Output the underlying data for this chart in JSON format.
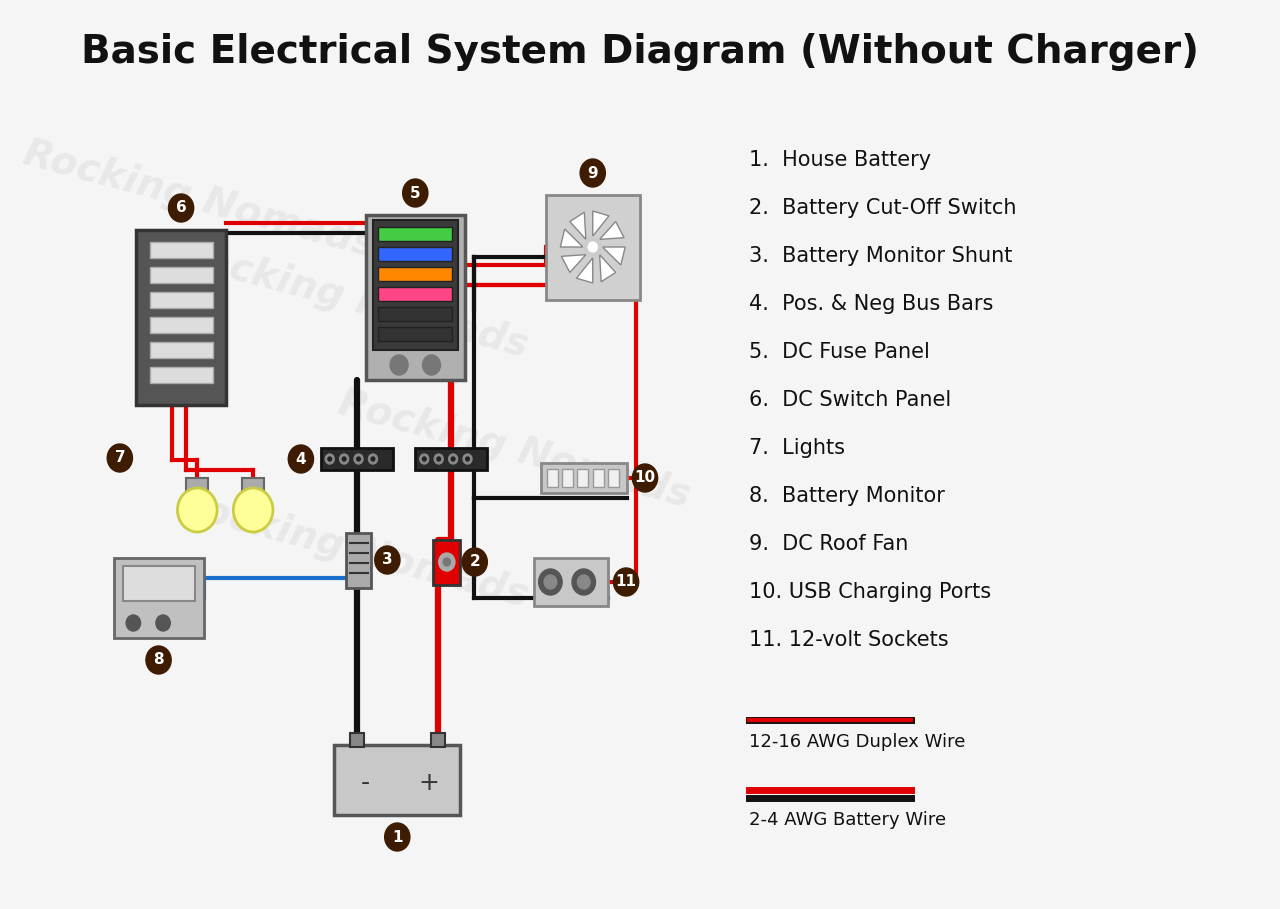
{
  "title": "Basic Electrical System Diagram (Without Charger)",
  "title_fontsize": 28,
  "background_color": "#f5f5f5",
  "legend_items": [
    "1.  House Battery",
    "2.  Battery Cut-Off Switch",
    "3.  Battery Monitor Shunt",
    "4.  Pos. & Neg Bus Bars",
    "5.  DC Fuse Panel",
    "6.  DC Switch Panel",
    "7.  Lights",
    "8.  Battery Monitor",
    "9.  DC Roof Fan",
    "10. USB Charging Ports",
    "11. 12-volt Sockets"
  ],
  "wire_legend_1": "12-16 AWG Duplex Wire",
  "wire_legend_2": "2-4 AWG Battery Wire",
  "dark_brown": "#3d1c02",
  "label_brown": "#4a2c0a",
  "red": "#e00000",
  "black": "#111111",
  "blue": "#1a6ecc",
  "gray_dark": "#555555",
  "gray_med": "#888888",
  "gray_light": "#b0b0b0",
  "gray_lighter": "#cccccc",
  "gray_box": "#696969",
  "fuse_gray": "#a0a0a0",
  "green_fuse": "#44cc44",
  "blue_fuse": "#3366ff",
  "orange_fuse": "#ff8800",
  "pink_fuse": "#ff4488",
  "yellow_light": "#ffff99",
  "switch_bg": "#888888"
}
